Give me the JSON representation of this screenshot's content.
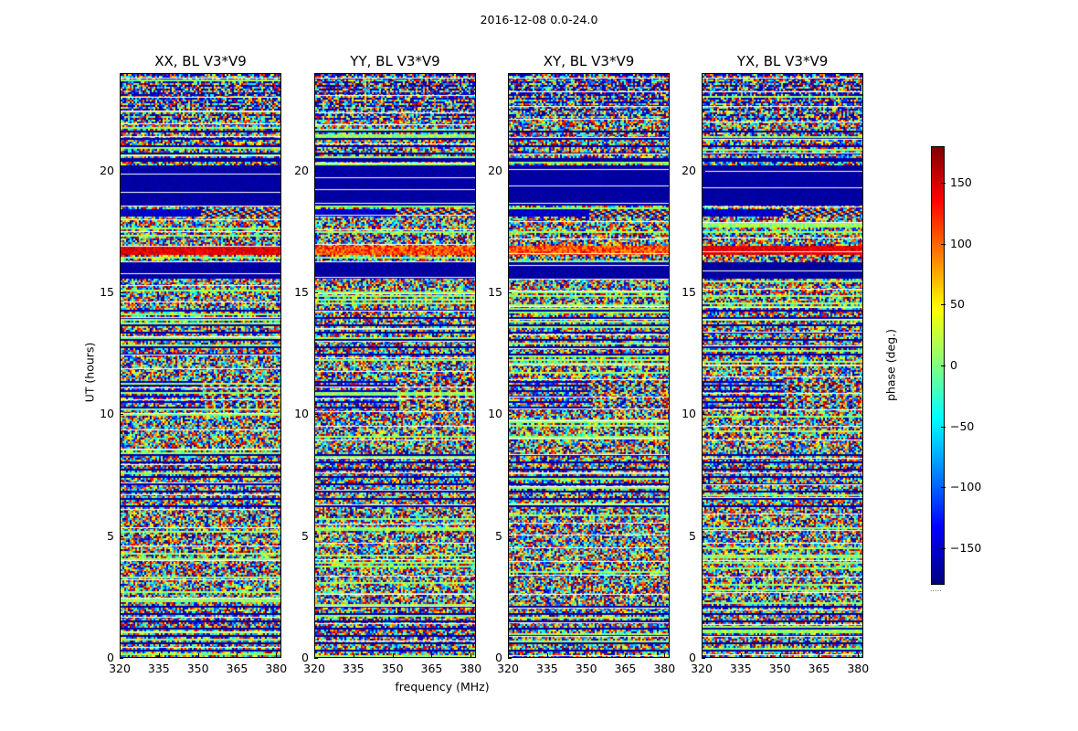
{
  "figure_title": "2016-12-08 0.0-24.0",
  "colorbar": {
    "label": "phase (deg.)",
    "ticks": [
      "150",
      "100",
      "50",
      "0",
      "−50",
      "−100",
      "−150"
    ],
    "tick_values": [
      150,
      100,
      50,
      0,
      -50,
      -100,
      -150
    ],
    "range": [
      -180,
      180
    ],
    "footer": "....."
  },
  "chart_data": {
    "type": "heatmap",
    "title": "2016-12-08 0.0-24.0",
    "xlabel": "frequency (MHz)",
    "ylabel": "UT (hours)",
    "xlim": [
      320,
      382
    ],
    "ylim": [
      0,
      24
    ],
    "xticks": [
      "320",
      "335",
      "350",
      "365",
      "380"
    ],
    "xtick_values": [
      320,
      335,
      350,
      365,
      380
    ],
    "yticks": [
      "0",
      "5",
      "10",
      "15",
      "20"
    ],
    "ytick_values": [
      0,
      5,
      10,
      15,
      20
    ],
    "colormap": "jet",
    "value_label": "phase (deg.)",
    "value_range": [
      -180,
      180
    ],
    "panels": [
      {
        "title": "XX, BL V3*V9"
      },
      {
        "title": "YY, BL V3*V9"
      },
      {
        "title": "XY, BL V3*V9"
      },
      {
        "title": "YX, BL V3*V9"
      }
    ]
  }
}
